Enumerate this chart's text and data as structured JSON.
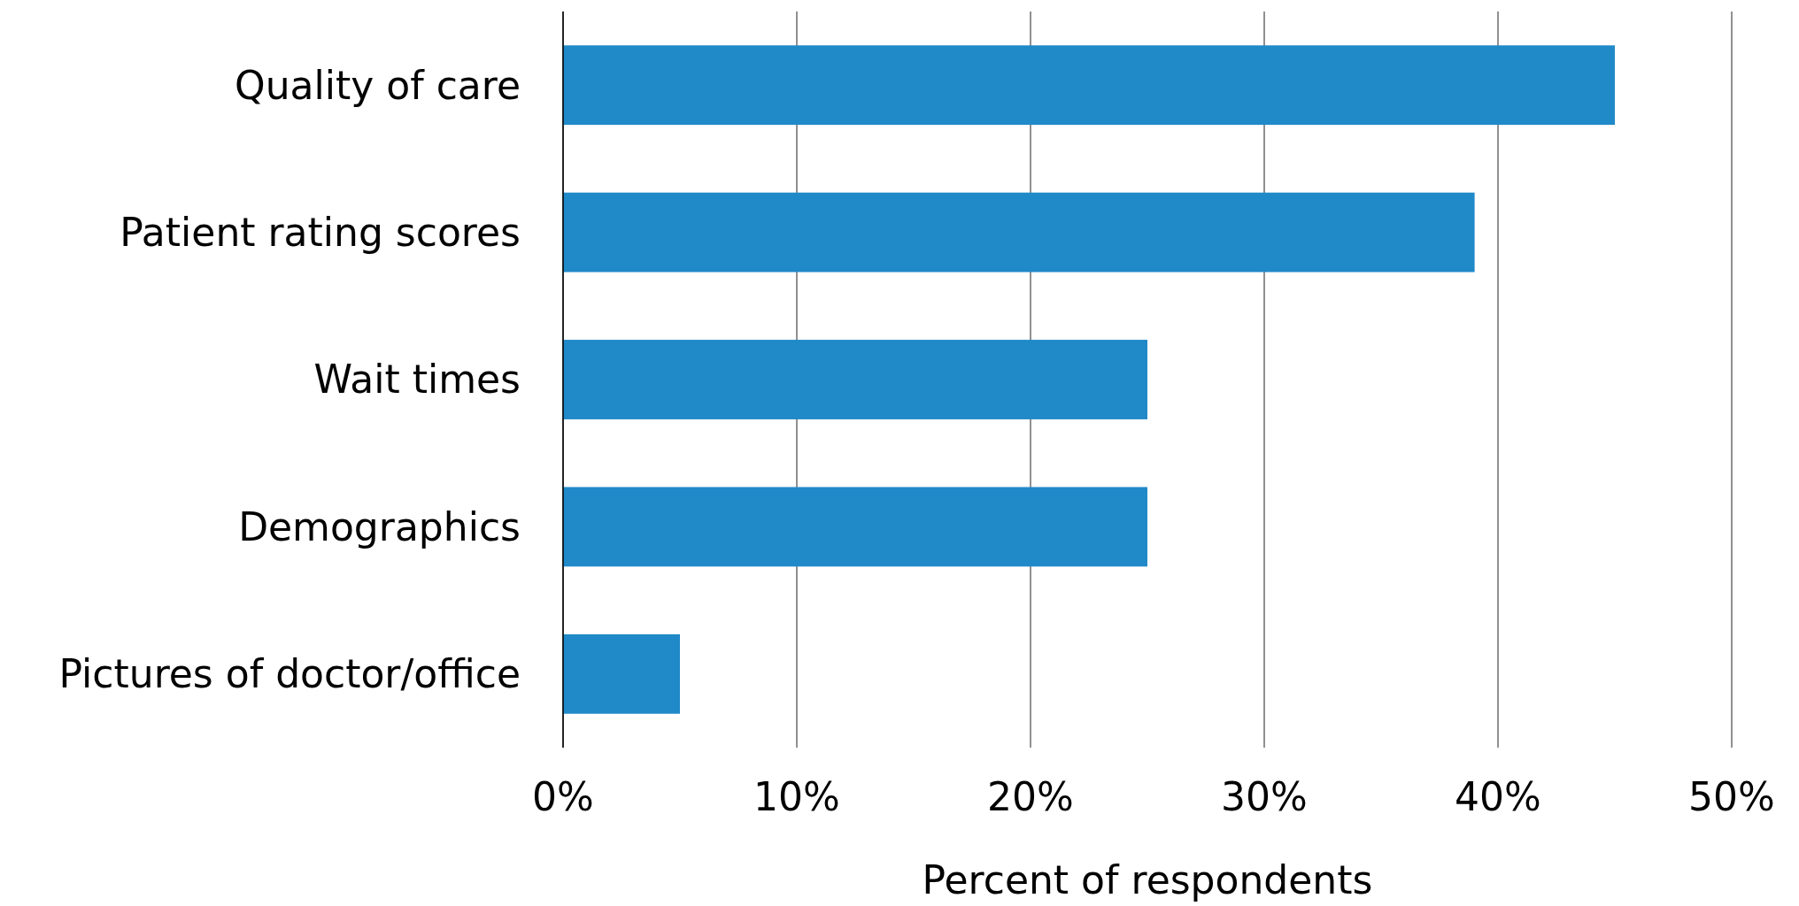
{
  "chart_data": {
    "type": "bar",
    "orientation": "horizontal",
    "xlabel": "Percent of respondents",
    "categories": [
      "Quality of care",
      "Patient rating scores",
      "Wait times",
      "Demographics",
      "Pictures of doctor/office"
    ],
    "values": [
      45,
      39,
      25,
      25,
      5
    ],
    "color": "#2089c8",
    "xlim": [
      0,
      50
    ],
    "xticks": [
      {
        "value": 0,
        "label": "0%"
      },
      {
        "value": 10,
        "label": "10%"
      },
      {
        "value": 20,
        "label": "20%"
      },
      {
        "value": 30,
        "label": "30%"
      },
      {
        "value": 40,
        "label": "40%"
      },
      {
        "value": 50,
        "label": "50%"
      }
    ],
    "grid": "x"
  }
}
